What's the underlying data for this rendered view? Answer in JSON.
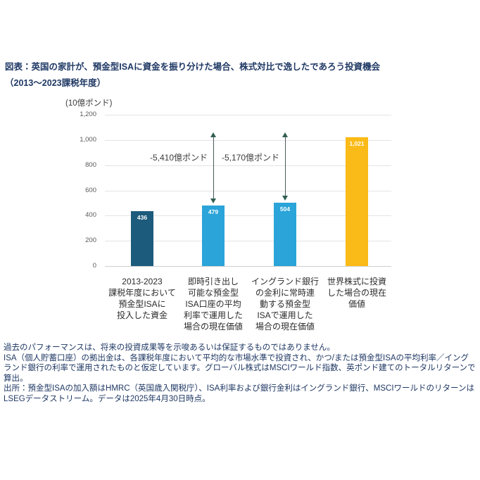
{
  "figure": {
    "title": "図表：英国の家計が、預金型ISAに資金を振り分けた場合、株式対比で逸したであろう投資機会\n（2013～2023課税年度）"
  },
  "chart_data": {
    "type": "bar",
    "title": "英国の家計が、預金型ISAに資金を振り分けた場合、株式対比で逸したであろう投資機会（2013～2023課税年度）",
    "unit_label": "(10億ポンド)",
    "ylim": [
      0,
      1200
    ],
    "ytick_labels": [
      "0",
      "200",
      "400",
      "600",
      "800",
      "1,000",
      "1,200"
    ],
    "grid": true,
    "legend": "none",
    "categories": [
      "2013-2023\n課税年度において\n預金型ISAに\n投入した資金",
      "即時引き出し\n可能な預金型\nISA口座の平均\n利率で運用した\n場合の現在価値",
      "イングランド銀行\nの金利に常時連\n動する預金型\nISAで運用した\n場合の現在価値",
      "世界株式に投資\nした場合の現在\n価値"
    ],
    "values": [
      436,
      479,
      504,
      1021
    ],
    "value_labels": [
      "436",
      "479",
      "504",
      "1,021"
    ],
    "bar_colors": [
      "#1D5B7C",
      "#2AA4D9",
      "#2AA4D9",
      "#FABA17"
    ],
    "annotations": [
      {
        "text": "-5,410億ポンド",
        "bar_index": 1
      },
      {
        "text": "-5,170億ポンド",
        "bar_index": 2
      }
    ]
  },
  "footnotes": [
    "過去のパフォーマンスは、将来の投資成果等を示唆あるいは保証するものではありません。",
    "ISA（個人貯蓄口座）の拠出金は、各課税年度において平均的な市場水準で投資され、かつ/または預金型ISAの平均利率／イングランド銀行の利率で運用されたものと仮定しています。グローバル株式はMSCIワールド指数、英ポンド建てのトータルリターンで算出。",
    "出所：預金型ISAの加入額はHMRC（英国歳入関税庁）、ISA利率および銀行金利はイングランド銀行、MSCIワールドのリターンはLSEGデータストリーム。データは2025年4月30日時点。"
  ],
  "colors": {
    "title_text": "#1F3864",
    "footnote_text": "#1F3864",
    "bar_dark_blue": "#1D5B7C",
    "bar_light_blue": "#2AA4D9",
    "bar_yellow": "#FABA17",
    "arrow": "#2F5F53",
    "gridline": "#E4E4E4",
    "tick_text": "#595959"
  }
}
